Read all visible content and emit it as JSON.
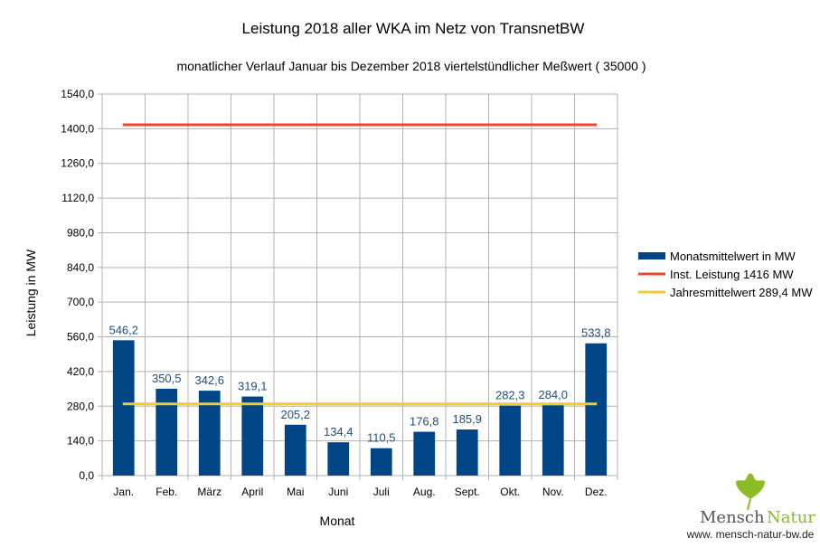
{
  "chart_data": {
    "type": "bar",
    "title": "Leistung 2018 aller WKA im Netz von TransnetBW",
    "subtitle": "monatlicher Verlauf Januar bis Dezember 2018 viertelstündlicher Meßwert ( 35000 )",
    "xlabel": "Monat",
    "ylabel": "Leistung in MW",
    "ylim": [
      0,
      1540
    ],
    "yticks": [
      "0,0",
      "140,0",
      "280,0",
      "420,0",
      "560,0",
      "700,0",
      "840,0",
      "980,0",
      "1120,0",
      "1260,0",
      "1400,0",
      "1540,0"
    ],
    "grid": true,
    "legend_position": "right",
    "categories": [
      "Jan.",
      "Feb.",
      "März",
      "April",
      "Mai",
      "Juni",
      "Juli",
      "Aug.",
      "Sept.",
      "Okt.",
      "Nov.",
      "Dez."
    ],
    "series": [
      {
        "name": "Monatsmittelwert in MW",
        "type": "bar",
        "color": "#004586",
        "values": [
          546.2,
          350.5,
          342.6,
          319.1,
          205.2,
          134.4,
          110.5,
          176.8,
          185.9,
          282.3,
          284.0,
          533.8
        ],
        "labels": [
          "546,2",
          "350,5",
          "342,6",
          "319,1",
          "205,2",
          "134,4",
          "110,5",
          "176,8",
          "185,9",
          "282,3",
          "284,0",
          "533,8"
        ]
      },
      {
        "name": "Inst. Leistung 1416 MW",
        "type": "line",
        "color": "#e8492b",
        "value": 1416
      },
      {
        "name": "Jahresmittelwert 289,4 MW",
        "type": "line",
        "color": "#f0cc30",
        "value": 289.4
      }
    ]
  },
  "logo": {
    "text_left": "Mensch",
    "text_right": "Natur",
    "url": "www. mensch-natur-bw.de"
  }
}
